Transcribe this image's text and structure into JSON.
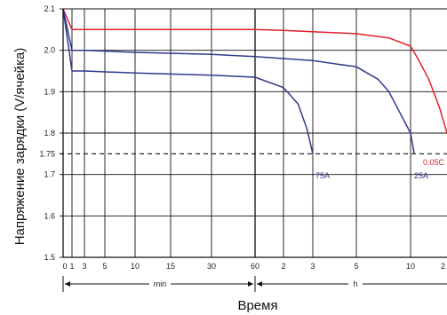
{
  "chart_data": {
    "type": "line",
    "title": "",
    "xlabel": "Время",
    "ylabel": "Напряжение зарядки (V/ячейка)",
    "ylim": [
      1.5,
      2.1
    ],
    "grid": true,
    "y_ticks": [
      "1.5",
      "1.6",
      "1.7",
      "1.75",
      "1.8",
      "1.9",
      "2.0",
      "2.1"
    ],
    "x_tick_labels": [
      "0",
      "1",
      "3",
      "5",
      "10",
      "15",
      "30",
      "60",
      "2",
      "3",
      "5",
      "10",
      "2"
    ],
    "x_units": [
      {
        "label": "min",
        "range": [
          "0 min",
          "60 min"
        ]
      },
      {
        "label": "h",
        "range": [
          "1 h",
          "20 h"
        ]
      }
    ],
    "reference_line": {
      "value": 1.75,
      "style": "dashed"
    },
    "series": [
      {
        "name": "0.05C",
        "color": "#e0202a",
        "points": [
          [
            "0 min",
            2.1
          ],
          [
            "1 min",
            2.05
          ],
          [
            "3 min",
            2.05
          ],
          [
            "10 min",
            2.05
          ],
          [
            "30 min",
            2.05
          ],
          [
            "60 min",
            2.05
          ],
          [
            "2 h",
            2.048
          ],
          [
            "3 h",
            2.045
          ],
          [
            "5 h",
            2.04
          ],
          [
            "8 h",
            2.03
          ],
          [
            "10 h",
            2.01
          ],
          [
            "12 h",
            1.98
          ],
          [
            "15 h",
            1.93
          ],
          [
            "18 h",
            1.86
          ],
          [
            "20 h",
            1.8
          ]
        ]
      },
      {
        "name": "25A",
        "color": "#2e3a8c",
        "points": [
          [
            "0 min",
            2.1
          ],
          [
            "1 min",
            2.0
          ],
          [
            "3 min",
            2.0
          ],
          [
            "10 min",
            1.995
          ],
          [
            "30 min",
            1.99
          ],
          [
            "60 min",
            1.985
          ],
          [
            "2 h",
            1.98
          ],
          [
            "3 h",
            1.975
          ],
          [
            "5 h",
            1.96
          ],
          [
            "7 h",
            1.93
          ],
          [
            "8 h",
            1.9
          ],
          [
            "9 h",
            1.85
          ],
          [
            "10 h",
            1.8
          ],
          [
            "11 h",
            1.75
          ]
        ]
      },
      {
        "name": "75A",
        "color": "#2e3a8c",
        "points": [
          [
            "0 min",
            2.1
          ],
          [
            "1 min",
            1.95
          ],
          [
            "3 min",
            1.95
          ],
          [
            "10 min",
            1.945
          ],
          [
            "30 min",
            1.94
          ],
          [
            "60 min",
            1.935
          ],
          [
            "2 h",
            1.91
          ],
          [
            "2.5 h",
            1.87
          ],
          [
            "2.8 h",
            1.81
          ],
          [
            "3 h",
            1.75
          ]
        ]
      }
    ]
  }
}
